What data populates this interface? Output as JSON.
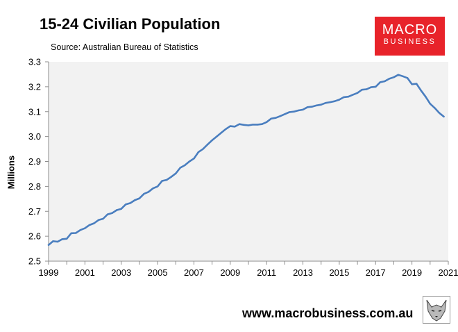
{
  "title": "15-24 Civilian Population",
  "subtitle": "Source: Australian Bureau of Statistics",
  "logo": {
    "line1": "MACRO",
    "line2": "BUSINESS",
    "color": "#e8232a"
  },
  "website": "www.macrobusiness.com.au",
  "chart_data": {
    "type": "line",
    "title": "15-24 Civilian Population",
    "xlabel": "",
    "ylabel": "Millions",
    "xlim": [
      1999,
      2021
    ],
    "ylim": [
      2.5,
      3.3
    ],
    "yticks": [
      "2.5",
      "2.6",
      "2.7",
      "2.8",
      "2.9",
      "3.0",
      "3.1",
      "3.2",
      "3.3"
    ],
    "xticks": [
      "1999",
      "2001",
      "2003",
      "2005",
      "2007",
      "2009",
      "2011",
      "2013",
      "2015",
      "2017",
      "2019",
      "2021"
    ],
    "grid": false,
    "background": "#f2f2f2",
    "series": [
      {
        "name": "15-24 Civilian Population",
        "color": "#4a7ebf",
        "x": [
          1999.0,
          1999.25,
          1999.5,
          1999.75,
          2000.0,
          2000.25,
          2000.5,
          2000.75,
          2001.0,
          2001.25,
          2001.5,
          2001.75,
          2002.0,
          2002.25,
          2002.5,
          2002.75,
          2003.0,
          2003.25,
          2003.5,
          2003.75,
          2004.0,
          2004.25,
          2004.5,
          2004.75,
          2005.0,
          2005.25,
          2005.5,
          2005.75,
          2006.0,
          2006.25,
          2006.5,
          2006.75,
          2007.0,
          2007.25,
          2007.5,
          2007.75,
          2008.0,
          2008.25,
          2008.5,
          2008.75,
          2009.0,
          2009.25,
          2009.5,
          2009.75,
          2010.0,
          2010.25,
          2010.5,
          2010.75,
          2011.0,
          2011.25,
          2011.5,
          2011.75,
          2012.0,
          2012.25,
          2012.5,
          2012.75,
          2013.0,
          2013.25,
          2013.5,
          2013.75,
          2014.0,
          2014.25,
          2014.5,
          2014.75,
          2015.0,
          2015.25,
          2015.5,
          2015.75,
          2016.0,
          2016.25,
          2016.5,
          2016.75,
          2017.0,
          2017.25,
          2017.5,
          2017.75,
          2018.0,
          2018.25,
          2018.5,
          2018.75,
          2019.0,
          2019.25,
          2019.5,
          2019.75,
          2020.0,
          2020.25,
          2020.5,
          2020.75
        ],
        "values": [
          2.565,
          2.58,
          2.578,
          2.588,
          2.59,
          2.612,
          2.613,
          2.625,
          2.632,
          2.645,
          2.652,
          2.665,
          2.67,
          2.688,
          2.693,
          2.705,
          2.71,
          2.728,
          2.733,
          2.745,
          2.752,
          2.77,
          2.778,
          2.792,
          2.8,
          2.822,
          2.826,
          2.838,
          2.852,
          2.875,
          2.885,
          2.9,
          2.912,
          2.938,
          2.95,
          2.968,
          2.985,
          3.0,
          3.015,
          3.03,
          3.042,
          3.04,
          3.05,
          3.047,
          3.045,
          3.048,
          3.048,
          3.05,
          3.058,
          3.072,
          3.075,
          3.082,
          3.09,
          3.098,
          3.1,
          3.105,
          3.108,
          3.118,
          3.12,
          3.125,
          3.128,
          3.135,
          3.138,
          3.142,
          3.148,
          3.158,
          3.16,
          3.168,
          3.175,
          3.188,
          3.19,
          3.198,
          3.2,
          3.218,
          3.222,
          3.232,
          3.238,
          3.248,
          3.242,
          3.235,
          3.21,
          3.212,
          3.185,
          3.16,
          3.132,
          3.115,
          3.095,
          3.08
        ]
      }
    ]
  }
}
